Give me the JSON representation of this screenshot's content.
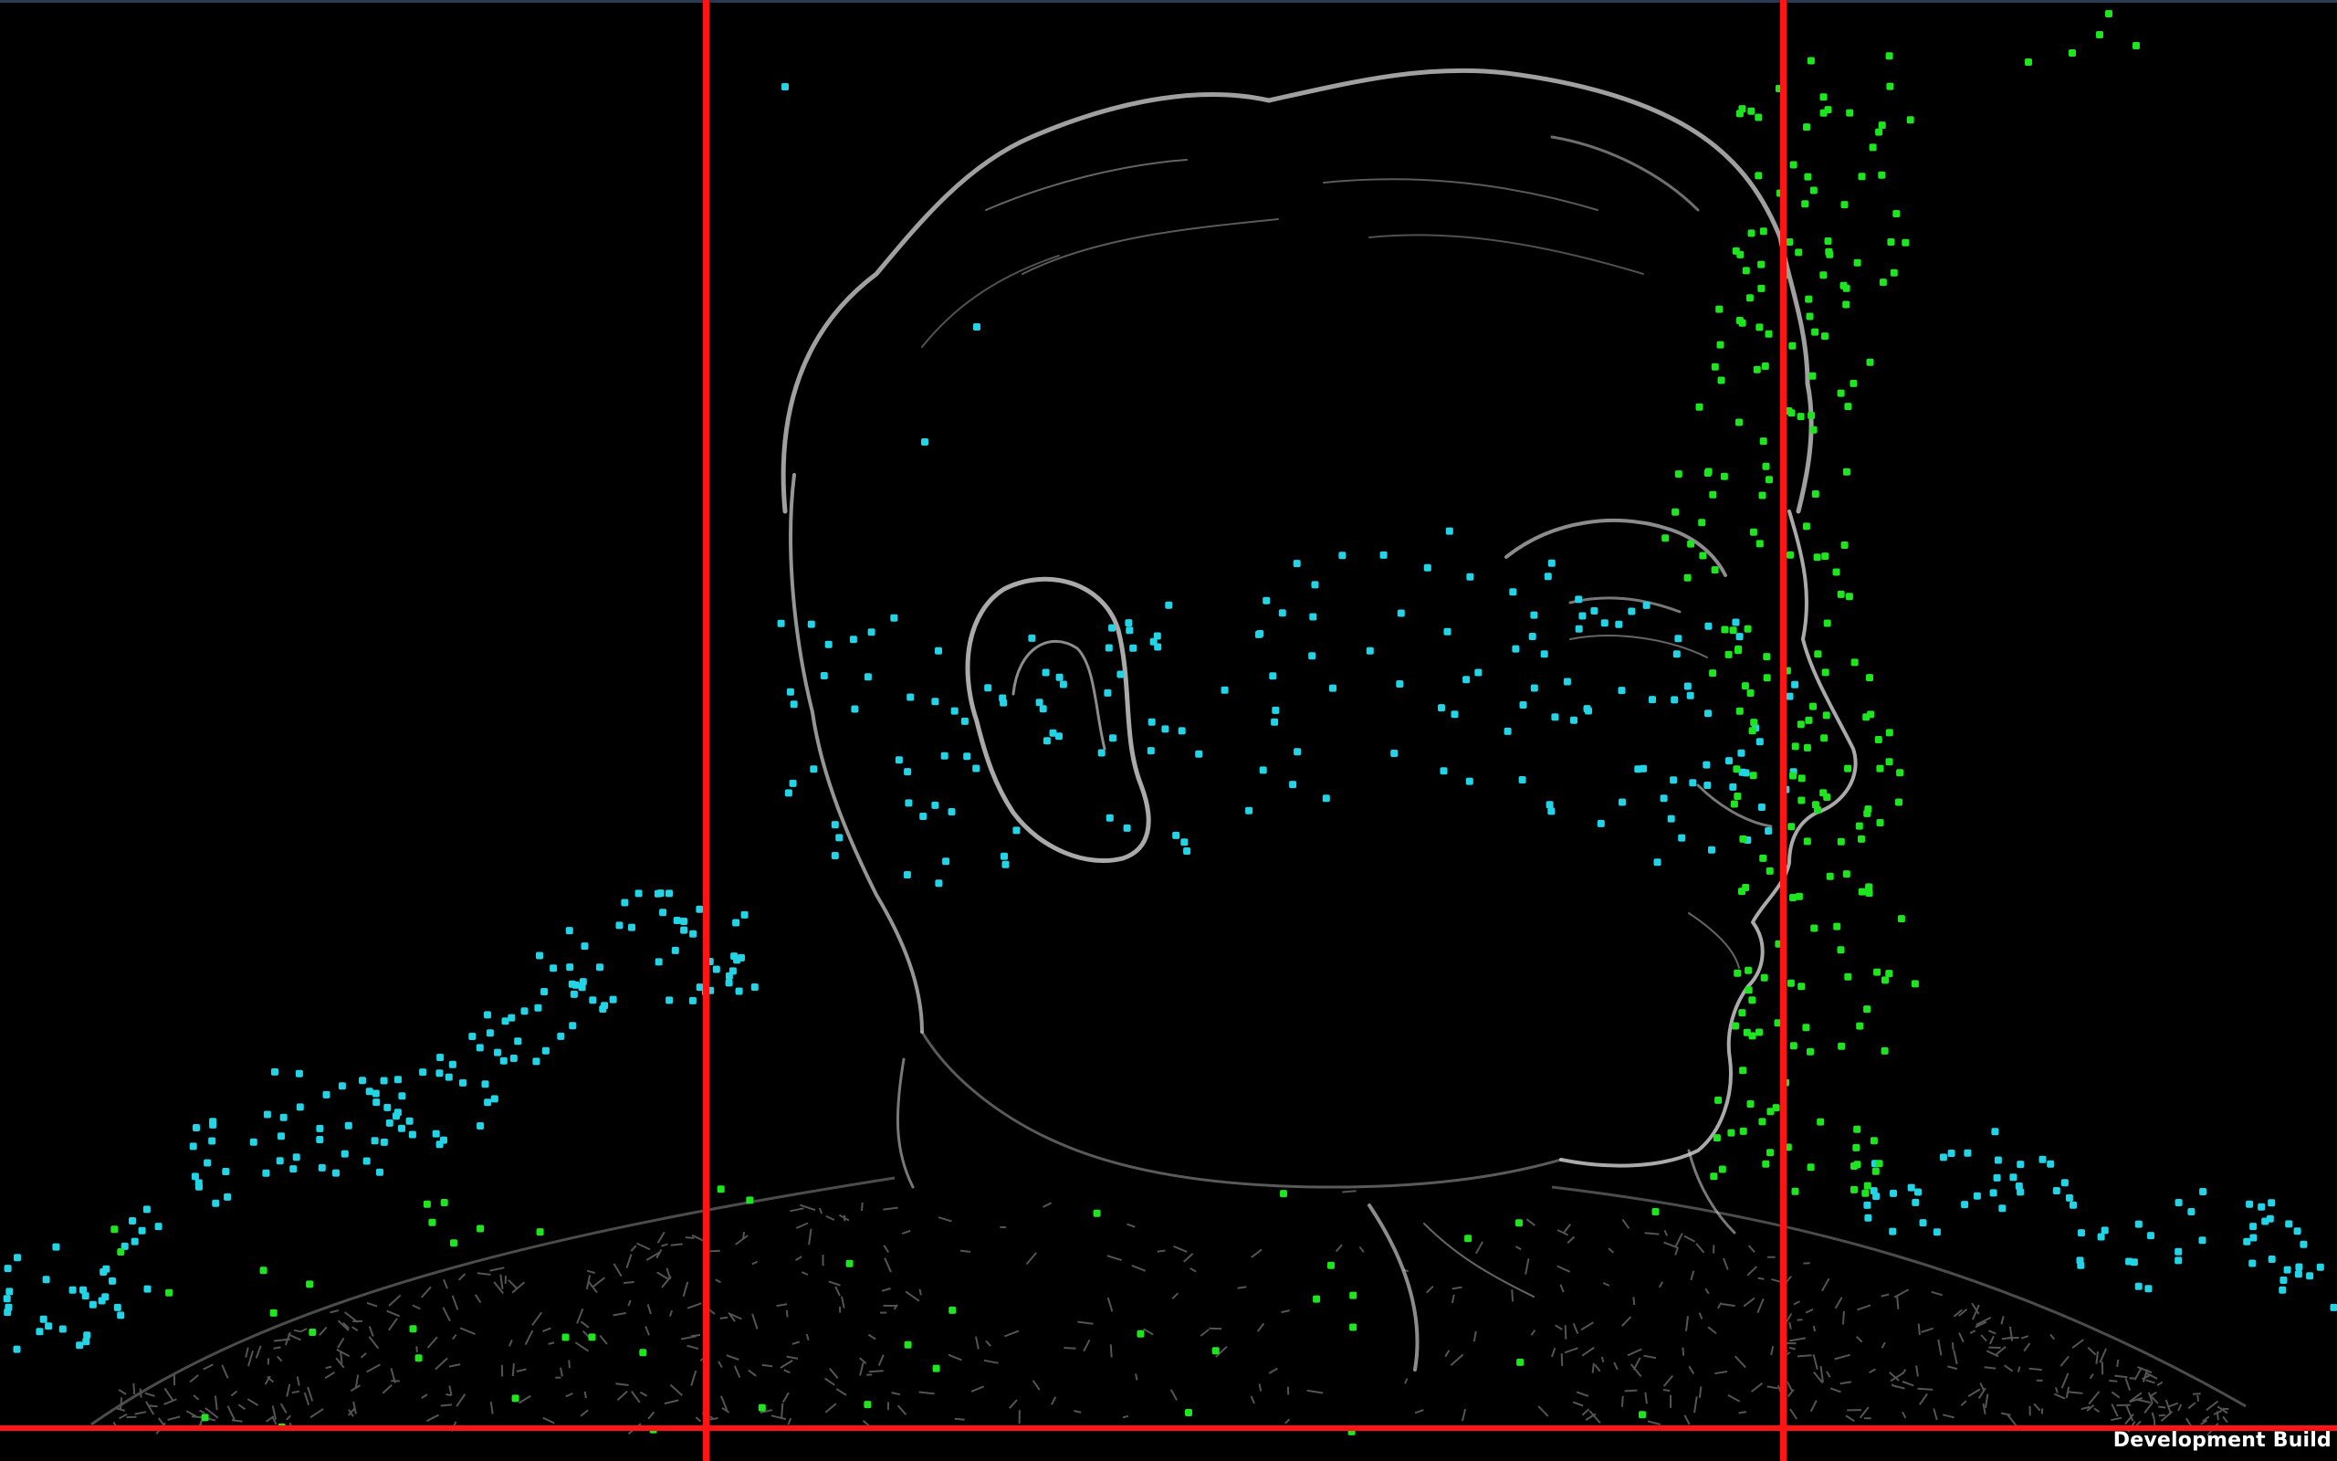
{
  "window": {
    "background_color": "#000000"
  },
  "overlay": {
    "guide_line_color": "#ff1414",
    "cyan_point_color": "#22d4e6",
    "green_point_color": "#1ee61e",
    "edge_color": "#c8c8c8"
  },
  "status": {
    "build_label": "Development Build"
  }
}
